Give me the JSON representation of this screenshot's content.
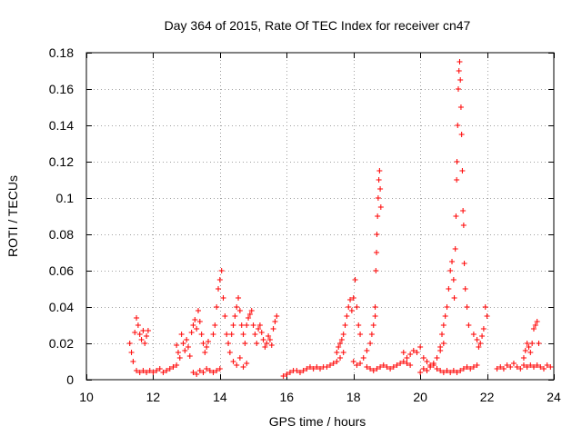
{
  "chart_data": {
    "type": "scatter",
    "title": "Day 364 of 2015, Rate Of TEC Index for receiver cn47",
    "xlabel": "GPS time / hours",
    "ylabel": "ROTI / TECUs",
    "xlim": [
      10,
      24
    ],
    "ylim": [
      0,
      0.18
    ],
    "xticks": [
      10,
      12,
      14,
      16,
      18,
      20,
      22,
      24
    ],
    "yticks": [
      0,
      0.02,
      0.04,
      0.06,
      0.08,
      0.1,
      0.12,
      0.14,
      0.16,
      0.18
    ],
    "grid": true,
    "marker": "+",
    "color": "#ff0000",
    "series": [
      {
        "name": "ROTI",
        "points": [
          [
            11.3,
            0.02
          ],
          [
            11.35,
            0.015
          ],
          [
            11.4,
            0.01
          ],
          [
            11.45,
            0.026
          ],
          [
            11.5,
            0.034
          ],
          [
            11.55,
            0.03
          ],
          [
            11.6,
            0.025
          ],
          [
            11.65,
            0.022
          ],
          [
            11.7,
            0.027
          ],
          [
            11.75,
            0.02
          ],
          [
            11.8,
            0.024
          ],
          [
            11.85,
            0.027
          ],
          [
            11.5,
            0.005
          ],
          [
            11.6,
            0.004
          ],
          [
            11.7,
            0.005
          ],
          [
            11.8,
            0.004
          ],
          [
            11.9,
            0.005
          ],
          [
            12.0,
            0.004
          ],
          [
            12.1,
            0.005
          ],
          [
            12.2,
            0.006
          ],
          [
            12.3,
            0.004
          ],
          [
            12.4,
            0.005
          ],
          [
            12.5,
            0.006
          ],
          [
            12.6,
            0.007
          ],
          [
            12.7,
            0.008
          ],
          [
            12.7,
            0.019
          ],
          [
            12.75,
            0.015
          ],
          [
            12.8,
            0.012
          ],
          [
            12.85,
            0.025
          ],
          [
            12.9,
            0.02
          ],
          [
            12.95,
            0.016
          ],
          [
            13.0,
            0.022
          ],
          [
            13.05,
            0.018
          ],
          [
            13.1,
            0.013
          ],
          [
            13.15,
            0.026
          ],
          [
            13.2,
            0.03
          ],
          [
            13.25,
            0.033
          ],
          [
            13.3,
            0.028
          ],
          [
            13.35,
            0.038
          ],
          [
            13.4,
            0.032
          ],
          [
            13.45,
            0.025
          ],
          [
            13.5,
            0.02
          ],
          [
            13.55,
            0.015
          ],
          [
            13.6,
            0.018
          ],
          [
            13.65,
            0.021
          ],
          [
            13.2,
            0.004
          ],
          [
            13.3,
            0.003
          ],
          [
            13.4,
            0.005
          ],
          [
            13.5,
            0.004
          ],
          [
            13.6,
            0.006
          ],
          [
            13.7,
            0.005
          ],
          [
            13.8,
            0.004
          ],
          [
            13.9,
            0.005
          ],
          [
            14.0,
            0.006
          ],
          [
            13.8,
            0.025
          ],
          [
            13.85,
            0.03
          ],
          [
            13.9,
            0.04
          ],
          [
            13.95,
            0.05
          ],
          [
            14.0,
            0.055
          ],
          [
            14.05,
            0.06
          ],
          [
            14.1,
            0.045
          ],
          [
            14.15,
            0.035
          ],
          [
            14.2,
            0.025
          ],
          [
            14.25,
            0.02
          ],
          [
            14.3,
            0.015
          ],
          [
            14.35,
            0.025
          ],
          [
            14.4,
            0.03
          ],
          [
            14.45,
            0.035
          ],
          [
            14.5,
            0.04
          ],
          [
            14.55,
            0.045
          ],
          [
            14.6,
            0.038
          ],
          [
            14.65,
            0.03
          ],
          [
            14.7,
            0.025
          ],
          [
            14.75,
            0.02
          ],
          [
            14.8,
            0.03
          ],
          [
            14.85,
            0.034
          ],
          [
            14.9,
            0.036
          ],
          [
            14.95,
            0.038
          ],
          [
            15.0,
            0.03
          ],
          [
            15.05,
            0.025
          ],
          [
            15.1,
            0.02
          ],
          [
            15.15,
            0.028
          ],
          [
            15.2,
            0.03
          ],
          [
            15.25,
            0.026
          ],
          [
            15.3,
            0.022
          ],
          [
            15.35,
            0.018
          ],
          [
            15.4,
            0.02
          ],
          [
            15.45,
            0.024
          ],
          [
            15.5,
            0.022
          ],
          [
            15.55,
            0.019
          ],
          [
            15.6,
            0.028
          ],
          [
            15.65,
            0.032
          ],
          [
            15.7,
            0.035
          ],
          [
            14.4,
            0.01
          ],
          [
            14.5,
            0.008
          ],
          [
            14.6,
            0.012
          ],
          [
            14.7,
            0.007
          ],
          [
            14.8,
            0.009
          ],
          [
            15.9,
            0.002
          ],
          [
            16.0,
            0.003
          ],
          [
            16.1,
            0.004
          ],
          [
            16.2,
            0.005
          ],
          [
            16.3,
            0.005
          ],
          [
            16.4,
            0.004
          ],
          [
            16.5,
            0.005
          ],
          [
            16.6,
            0.006
          ],
          [
            16.7,
            0.007
          ],
          [
            16.8,
            0.006
          ],
          [
            16.9,
            0.007
          ],
          [
            17.0,
            0.006
          ],
          [
            17.1,
            0.007
          ],
          [
            17.2,
            0.007
          ],
          [
            17.3,
            0.008
          ],
          [
            17.4,
            0.009
          ],
          [
            17.5,
            0.01
          ],
          [
            17.6,
            0.012
          ],
          [
            17.7,
            0.015
          ],
          [
            17.5,
            0.015
          ],
          [
            17.55,
            0.018
          ],
          [
            17.6,
            0.02
          ],
          [
            17.65,
            0.022
          ],
          [
            17.7,
            0.025
          ],
          [
            17.75,
            0.03
          ],
          [
            17.8,
            0.035
          ],
          [
            17.85,
            0.04
          ],
          [
            17.9,
            0.044
          ],
          [
            17.95,
            0.038
          ],
          [
            18.0,
            0.045
          ],
          [
            18.05,
            0.055
          ],
          [
            18.1,
            0.04
          ],
          [
            18.15,
            0.03
          ],
          [
            18.2,
            0.025
          ],
          [
            18.0,
            0.01
          ],
          [
            18.1,
            0.008
          ],
          [
            18.2,
            0.009
          ],
          [
            18.3,
            0.012
          ],
          [
            18.4,
            0.016
          ],
          [
            18.5,
            0.02
          ],
          [
            18.55,
            0.025
          ],
          [
            18.6,
            0.03
          ],
          [
            18.65,
            0.035
          ],
          [
            18.4,
            0.007
          ],
          [
            18.5,
            0.006
          ],
          [
            18.6,
            0.005
          ],
          [
            18.7,
            0.006
          ],
          [
            18.8,
            0.007
          ],
          [
            18.9,
            0.008
          ],
          [
            19.0,
            0.007
          ],
          [
            19.1,
            0.006
          ],
          [
            19.2,
            0.007
          ],
          [
            19.3,
            0.008
          ],
          [
            19.4,
            0.009
          ],
          [
            19.5,
            0.01
          ],
          [
            19.6,
            0.009
          ],
          [
            19.7,
            0.008
          ],
          [
            18.65,
            0.04
          ],
          [
            18.67,
            0.06
          ],
          [
            18.69,
            0.07
          ],
          [
            18.7,
            0.08
          ],
          [
            18.72,
            0.09
          ],
          [
            18.74,
            0.1
          ],
          [
            18.76,
            0.11
          ],
          [
            18.78,
            0.115
          ],
          [
            18.8,
            0.105
          ],
          [
            18.82,
            0.095
          ],
          [
            19.5,
            0.015
          ],
          [
            19.6,
            0.012
          ],
          [
            19.7,
            0.014
          ],
          [
            19.8,
            0.016
          ],
          [
            19.9,
            0.015
          ],
          [
            20.0,
            0.018
          ],
          [
            20.1,
            0.012
          ],
          [
            20.2,
            0.01
          ],
          [
            20.3,
            0.008
          ],
          [
            20.4,
            0.009
          ],
          [
            20.5,
            0.012
          ],
          [
            20.6,
            0.016
          ],
          [
            20.7,
            0.02
          ],
          [
            20.0,
            0.004
          ],
          [
            20.1,
            0.006
          ],
          [
            20.2,
            0.005
          ],
          [
            20.3,
            0.007
          ],
          [
            20.4,
            0.008
          ],
          [
            20.5,
            0.006
          ],
          [
            20.6,
            0.005
          ],
          [
            20.7,
            0.004
          ],
          [
            20.8,
            0.005
          ],
          [
            20.9,
            0.004
          ],
          [
            21.0,
            0.005
          ],
          [
            21.1,
            0.004
          ],
          [
            21.2,
            0.005
          ],
          [
            21.3,
            0.006
          ],
          [
            21.4,
            0.007
          ],
          [
            21.5,
            0.006
          ],
          [
            21.6,
            0.007
          ],
          [
            21.7,
            0.008
          ],
          [
            20.6,
            0.018
          ],
          [
            20.65,
            0.025
          ],
          [
            20.7,
            0.03
          ],
          [
            20.75,
            0.035
          ],
          [
            20.8,
            0.04
          ],
          [
            20.85,
            0.05
          ],
          [
            20.9,
            0.06
          ],
          [
            20.95,
            0.065
          ],
          [
            21.0,
            0.055
          ],
          [
            21.02,
            0.045
          ],
          [
            21.05,
            0.072
          ],
          [
            21.07,
            0.09
          ],
          [
            21.09,
            0.11
          ],
          [
            21.1,
            0.12
          ],
          [
            21.12,
            0.14
          ],
          [
            21.14,
            0.16
          ],
          [
            21.16,
            0.17
          ],
          [
            21.18,
            0.175
          ],
          [
            21.2,
            0.165
          ],
          [
            21.22,
            0.15
          ],
          [
            21.24,
            0.135
          ],
          [
            21.26,
            0.115
          ],
          [
            21.28,
            0.093
          ],
          [
            21.3,
            0.085
          ],
          [
            21.32,
            0.064
          ],
          [
            21.35,
            0.05
          ],
          [
            21.4,
            0.04
          ],
          [
            21.45,
            0.03
          ],
          [
            21.6,
            0.025
          ],
          [
            21.7,
            0.022
          ],
          [
            21.75,
            0.018
          ],
          [
            21.8,
            0.02
          ],
          [
            21.85,
            0.024
          ],
          [
            21.9,
            0.028
          ],
          [
            21.95,
            0.04
          ],
          [
            22.0,
            0.035
          ],
          [
            22.3,
            0.006
          ],
          [
            22.4,
            0.007
          ],
          [
            22.5,
            0.006
          ],
          [
            22.6,
            0.008
          ],
          [
            22.7,
            0.007
          ],
          [
            22.8,
            0.009
          ],
          [
            22.9,
            0.007
          ],
          [
            23.0,
            0.006
          ],
          [
            23.1,
            0.008
          ],
          [
            23.2,
            0.007
          ],
          [
            23.3,
            0.008
          ],
          [
            23.4,
            0.007
          ],
          [
            23.5,
            0.008
          ],
          [
            23.6,
            0.007
          ],
          [
            23.7,
            0.006
          ],
          [
            23.8,
            0.008
          ],
          [
            23.9,
            0.007
          ],
          [
            23.1,
            0.012
          ],
          [
            23.15,
            0.016
          ],
          [
            23.2,
            0.02
          ],
          [
            23.25,
            0.018
          ],
          [
            23.3,
            0.015
          ],
          [
            23.35,
            0.02
          ],
          [
            23.4,
            0.028
          ],
          [
            23.45,
            0.03
          ],
          [
            23.5,
            0.032
          ],
          [
            23.55,
            0.02
          ]
        ]
      }
    ]
  }
}
